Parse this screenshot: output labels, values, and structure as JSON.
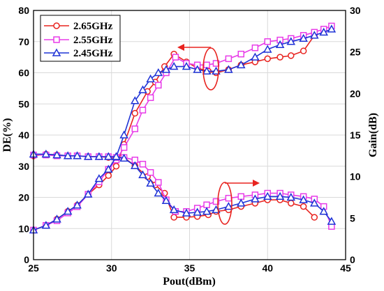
{
  "chart_data": {
    "type": "line",
    "xlabel": "Pout(dBm)",
    "ylabel_left": "DE(%)",
    "ylabel_right": "Gain(dB)",
    "xlim": [
      25,
      45
    ],
    "ylim_left": [
      0,
      80
    ],
    "ylim_right": [
      0,
      30
    ],
    "x_ticks": [
      "25",
      "30",
      "35",
      "40",
      "45"
    ],
    "y_left_ticks": [
      "0",
      "10",
      "20",
      "30",
      "40",
      "50",
      "60",
      "70",
      "80"
    ],
    "y_right_ticks": [
      "0",
      "5",
      "10",
      "15",
      "20",
      "25",
      "30"
    ],
    "grid": true,
    "legend_position": "top-left",
    "series": [
      {
        "name": "2.65GHz",
        "color": "#e8231f",
        "marker": "circle",
        "de": {
          "x": [
            25.0,
            25.8,
            26.5,
            27.2,
            27.8,
            28.5,
            29.2,
            29.8,
            30.3,
            30.8,
            31.5,
            32.3,
            32.8,
            33.4,
            34.0,
            34.8,
            35.5,
            36.2,
            36.7,
            37.5,
            38.3,
            39.2,
            40.0,
            40.8,
            41.5,
            42.3,
            43.0
          ],
          "y": [
            9.5,
            11.0,
            13.0,
            15.5,
            17.5,
            21.0,
            24.0,
            27.0,
            30.0,
            37.0,
            47.0,
            54.0,
            57.0,
            62.0,
            66.0,
            63.5,
            61.5,
            60.5,
            60.0,
            61.0,
            62.5,
            63.5,
            64.5,
            65.0,
            65.5,
            67.0,
            72.0
          ]
        },
        "gain": {
          "x": [
            25.0,
            25.8,
            26.5,
            27.2,
            27.8,
            28.5,
            29.2,
            29.8,
            30.3,
            30.8,
            31.5,
            32.3,
            32.8,
            33.4,
            34.0,
            34.8,
            35.5,
            36.2,
            36.7,
            37.5,
            38.3,
            39.2,
            40.0,
            40.8,
            41.5,
            42.3,
            43.0
          ],
          "y": [
            12.5,
            12.7,
            12.6,
            12.5,
            12.5,
            12.4,
            12.4,
            12.3,
            12.2,
            12.3,
            11.3,
            10.0,
            9.0,
            8.0,
            5.1,
            5.1,
            5.2,
            5.4,
            5.8,
            6.0,
            6.4,
            6.8,
            7.2,
            7.2,
            6.8,
            6.4,
            5.1
          ]
        }
      },
      {
        "name": "2.55GHz",
        "color": "#e83ce8",
        "marker": "square",
        "de": {
          "x": [
            25.0,
            25.8,
            26.5,
            27.2,
            27.8,
            28.5,
            29.2,
            29.8,
            30.3,
            30.8,
            31.5,
            32.0,
            32.5,
            33.0,
            33.5,
            34.1,
            34.8,
            35.5,
            36.1,
            36.7,
            37.5,
            38.3,
            39.2,
            40.0,
            40.8,
            41.5,
            42.3,
            43.0,
            43.6,
            44.1
          ],
          "y": [
            9.5,
            11.0,
            12.5,
            15.0,
            17.0,
            21.0,
            25.0,
            29.0,
            32.0,
            36.0,
            42.0,
            48.0,
            52.0,
            56.0,
            60.0,
            65.0,
            63.0,
            62.5,
            62.5,
            63.0,
            64.5,
            66.0,
            68.0,
            70.0,
            70.5,
            71.0,
            72.0,
            73.0,
            74.0,
            75.0
          ]
        },
        "gain": {
          "x": [
            25.0,
            25.8,
            26.5,
            27.2,
            27.8,
            28.5,
            29.2,
            29.8,
            30.3,
            30.8,
            31.5,
            32.0,
            32.5,
            33.0,
            33.5,
            34.1,
            34.8,
            35.5,
            36.1,
            36.7,
            37.5,
            38.3,
            39.2,
            40.0,
            40.8,
            41.5,
            42.3,
            43.0,
            43.6,
            44.1
          ],
          "y": [
            12.6,
            12.6,
            12.5,
            12.5,
            12.5,
            12.4,
            12.4,
            12.4,
            12.3,
            12.3,
            12.0,
            11.5,
            10.5,
            9.3,
            7.2,
            5.8,
            5.8,
            6.2,
            6.6,
            7.0,
            7.4,
            7.6,
            7.8,
            8.0,
            8.0,
            7.8,
            7.6,
            7.3,
            6.4,
            4.0
          ]
        }
      },
      {
        "name": "2.45GHz",
        "color": "#1f33d6",
        "marker": "triangle",
        "de": {
          "x": [
            25.0,
            25.8,
            26.5,
            27.2,
            27.8,
            28.5,
            29.2,
            29.8,
            30.3,
            30.8,
            31.5,
            32.0,
            32.5,
            33.0,
            33.5,
            34.0,
            34.8,
            35.5,
            36.1,
            36.7,
            37.5,
            38.3,
            39.2,
            40.0,
            40.8,
            41.5,
            42.3,
            43.0,
            43.6,
            44.1
          ],
          "y": [
            9.5,
            11.0,
            13.0,
            15.5,
            17.5,
            21.0,
            26.0,
            29.0,
            33.0,
            40.0,
            51.0,
            54.5,
            58.0,
            60.0,
            61.0,
            62.0,
            62.0,
            61.0,
            60.5,
            60.5,
            61.0,
            62.5,
            65.0,
            67.5,
            69.0,
            70.0,
            71.0,
            72.0,
            73.0,
            74.0
          ]
        },
        "gain": {
          "x": [
            25.0,
            25.8,
            26.5,
            27.2,
            27.8,
            28.5,
            29.2,
            29.8,
            30.3,
            30.8,
            31.5,
            32.0,
            32.5,
            33.0,
            33.5,
            34.0,
            34.8,
            35.5,
            36.1,
            36.7,
            37.5,
            38.3,
            39.2,
            40.0,
            40.8,
            41.5,
            42.3,
            43.0,
            43.6,
            44.1
          ],
          "y": [
            12.7,
            12.7,
            12.6,
            12.5,
            12.5,
            12.4,
            12.4,
            12.4,
            12.4,
            12.2,
            11.3,
            10.2,
            9.2,
            8.0,
            7.1,
            6.0,
            5.6,
            5.7,
            5.8,
            6.0,
            6.4,
            6.8,
            7.3,
            7.6,
            7.6,
            7.5,
            7.2,
            6.8,
            5.8,
            4.6
          ]
        }
      }
    ]
  }
}
